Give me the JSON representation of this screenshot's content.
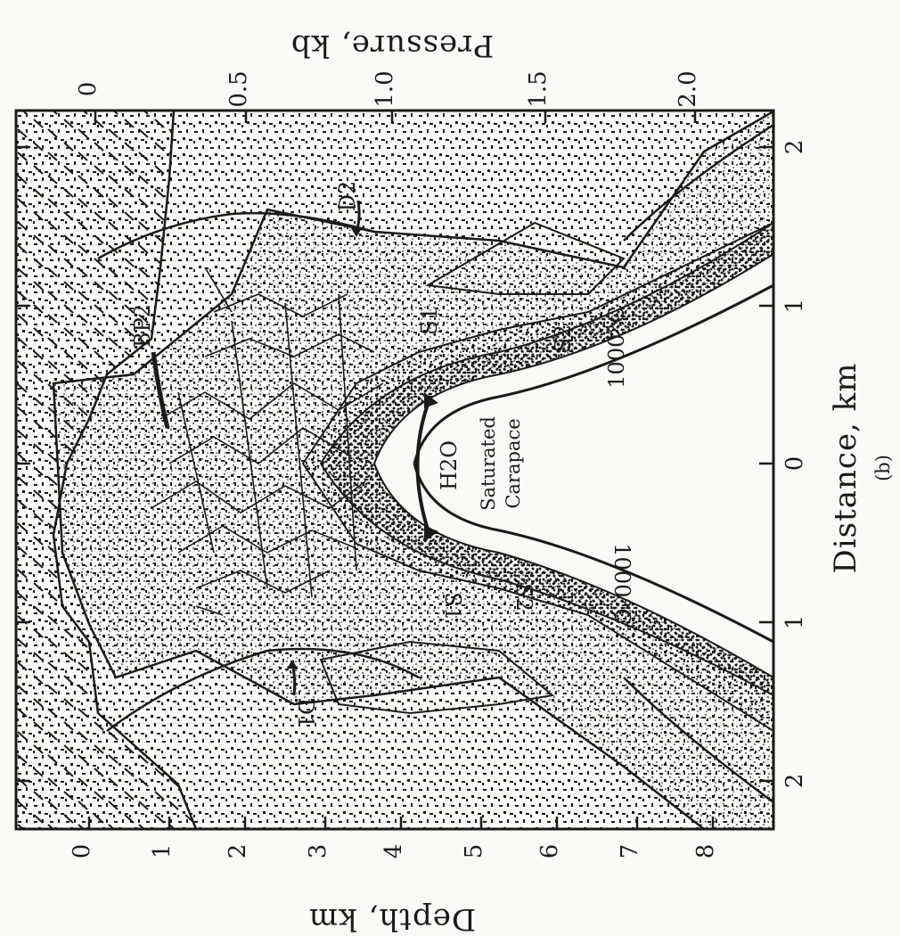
{
  "figure": {
    "bottom_axis_title": "Distance, km",
    "panel_label": "(b)",
    "top_axis_title": "Pressure, kb",
    "left_axis_title": "Depth, km",
    "distance_ticks": [
      "2",
      "1",
      "0",
      "1",
      "2"
    ],
    "pressure_ticks": [
      "0",
      "0.5",
      "1.0",
      "1.5",
      "2.0"
    ],
    "depth_ticks": [
      "0",
      "1",
      "2",
      "3",
      "4",
      "5",
      "6",
      "7",
      "8"
    ]
  },
  "labels": {
    "bp2": "BP2",
    "d1": "D1",
    "d2": "D2",
    "s1_left": "S1",
    "s2_left": "S2",
    "s1_right": "S1",
    "s2_right": "S2",
    "iso_left": "1000°C",
    "iso_right": "1000°C",
    "h2o": "H2O",
    "saturated": "Saturated",
    "carapace": "Carapace"
  },
  "colors": {
    "ink": "#1a1a1a",
    "paper": "#fafaf7"
  }
}
